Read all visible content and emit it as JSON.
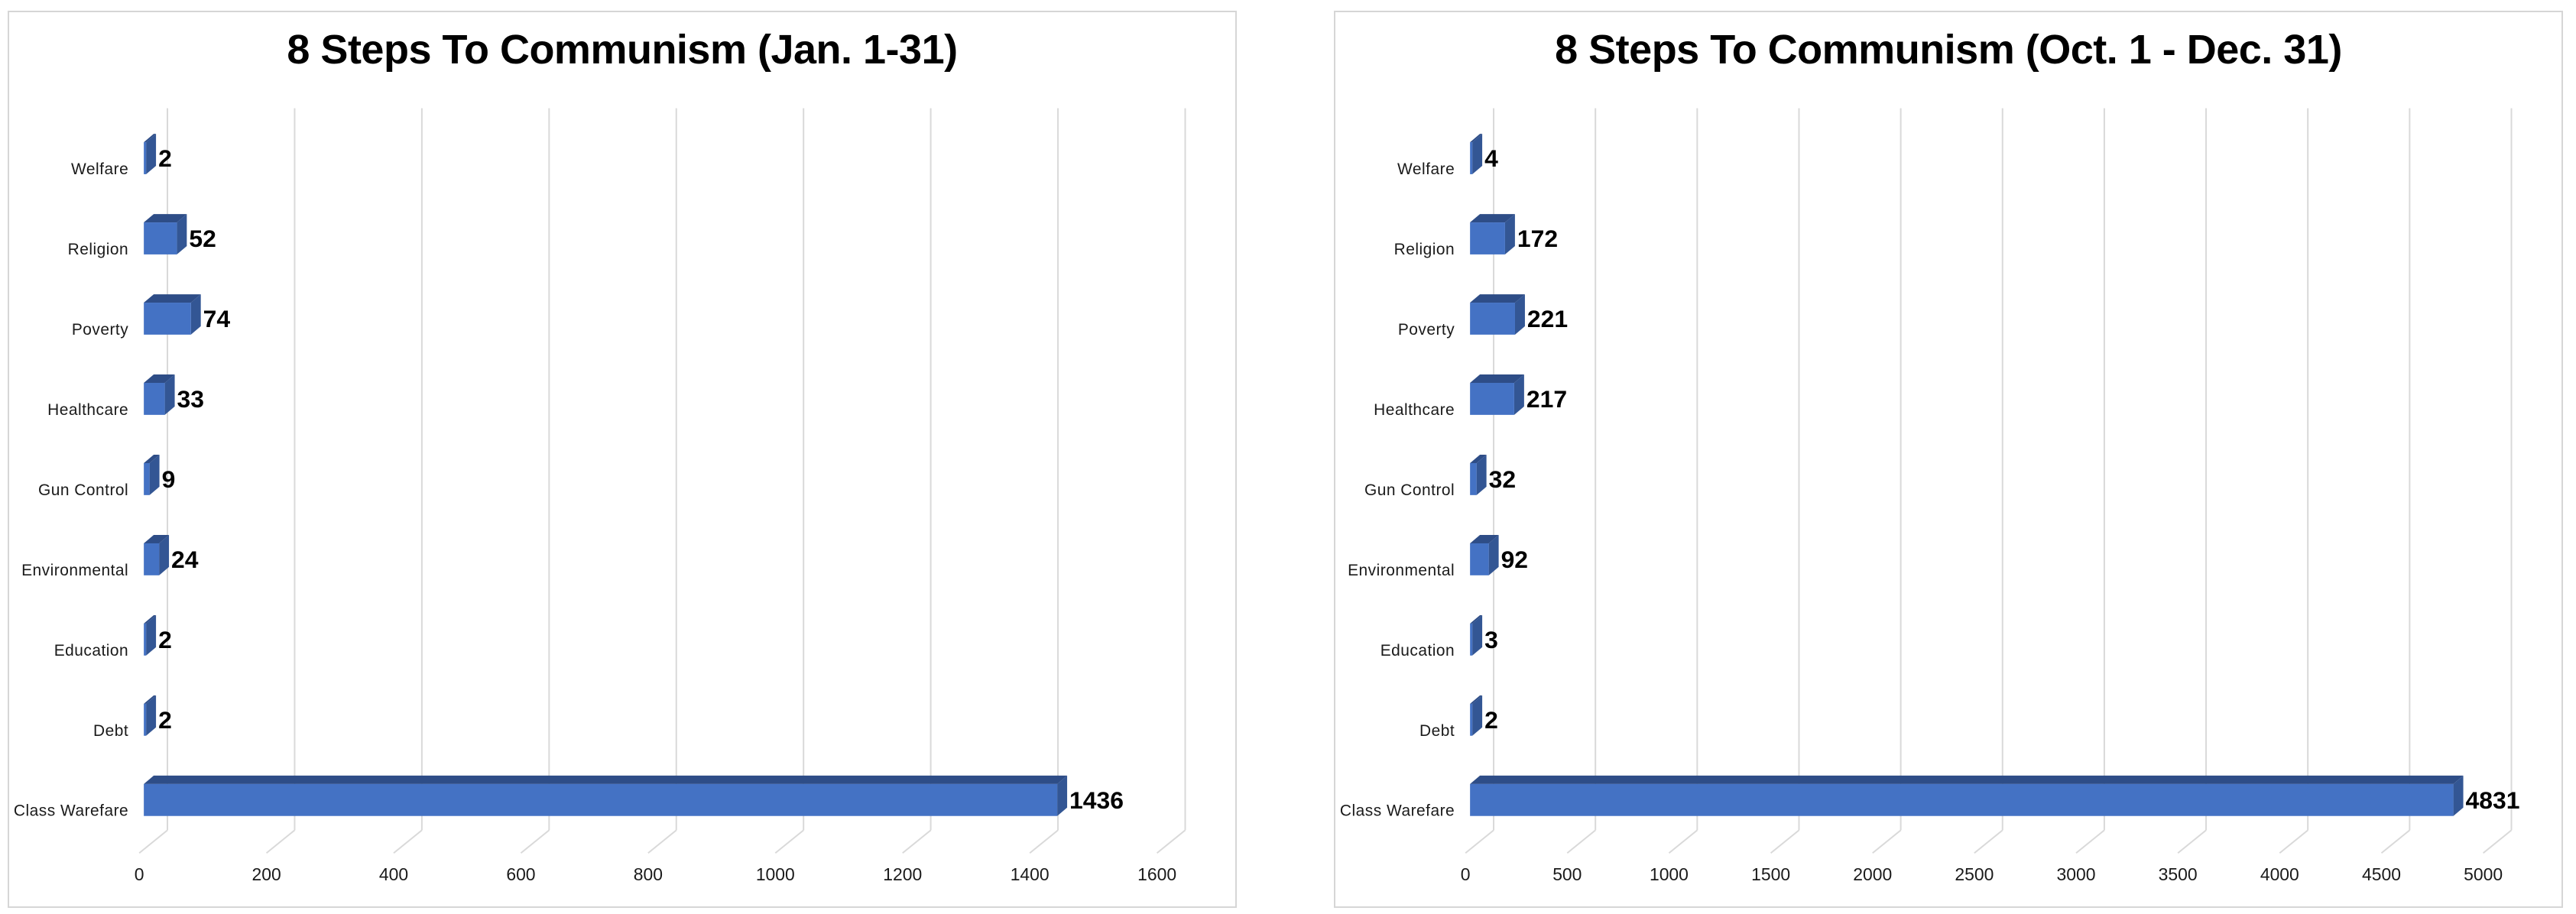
{
  "page": {
    "background_color": "#ffffff",
    "panel_border_color": "#d6d6d6",
    "gridline_color": "#d9d9d9"
  },
  "chart_data": [
    {
      "type": "bar",
      "orientation": "horizontal",
      "effect": "3d",
      "title": "8 Steps To Communism (Jan. 1-31)",
      "categories": [
        "Welfare",
        "Religion",
        "Poverty",
        "Healthcare",
        "Gun Control",
        "Environmental",
        "Education",
        "Debt",
        "Class Warefare"
      ],
      "values": [
        2,
        52,
        74,
        33,
        9,
        24,
        2,
        2,
        1436
      ],
      "value_labels": [
        "2",
        "52",
        "74",
        "33",
        "9",
        "24",
        "2",
        "2",
        "1436"
      ],
      "xlim": [
        0,
        1600
      ],
      "xticks": [
        0,
        200,
        400,
        600,
        800,
        1000,
        1200,
        1400,
        1600
      ],
      "grid": true,
      "legend": null,
      "xlabel": "",
      "ylabel": "",
      "bar_front_color": "#4472c4",
      "bar_top_color": "#2e4d87",
      "bar_side_color": "#335694"
    },
    {
      "type": "bar",
      "orientation": "horizontal",
      "effect": "3d",
      "title": "8 Steps To Communism (Oct. 1 - Dec. 31)",
      "categories": [
        "Welfare",
        "Religion",
        "Poverty",
        "Healthcare",
        "Gun Control",
        "Environmental",
        "Education",
        "Debt",
        "Class Warefare"
      ],
      "values": [
        4,
        172,
        221,
        217,
        32,
        92,
        3,
        2,
        4831
      ],
      "value_labels": [
        "4",
        "172",
        "221",
        "217",
        "32",
        "92",
        "3",
        "2",
        "4831"
      ],
      "xlim": [
        0,
        5000
      ],
      "xticks": [
        0,
        500,
        1000,
        1500,
        2000,
        2500,
        3000,
        3500,
        4000,
        4500,
        5000
      ],
      "grid": true,
      "legend": null,
      "xlabel": "",
      "ylabel": "",
      "bar_front_color": "#4472c4",
      "bar_top_color": "#2e4d87",
      "bar_side_color": "#335694"
    }
  ]
}
